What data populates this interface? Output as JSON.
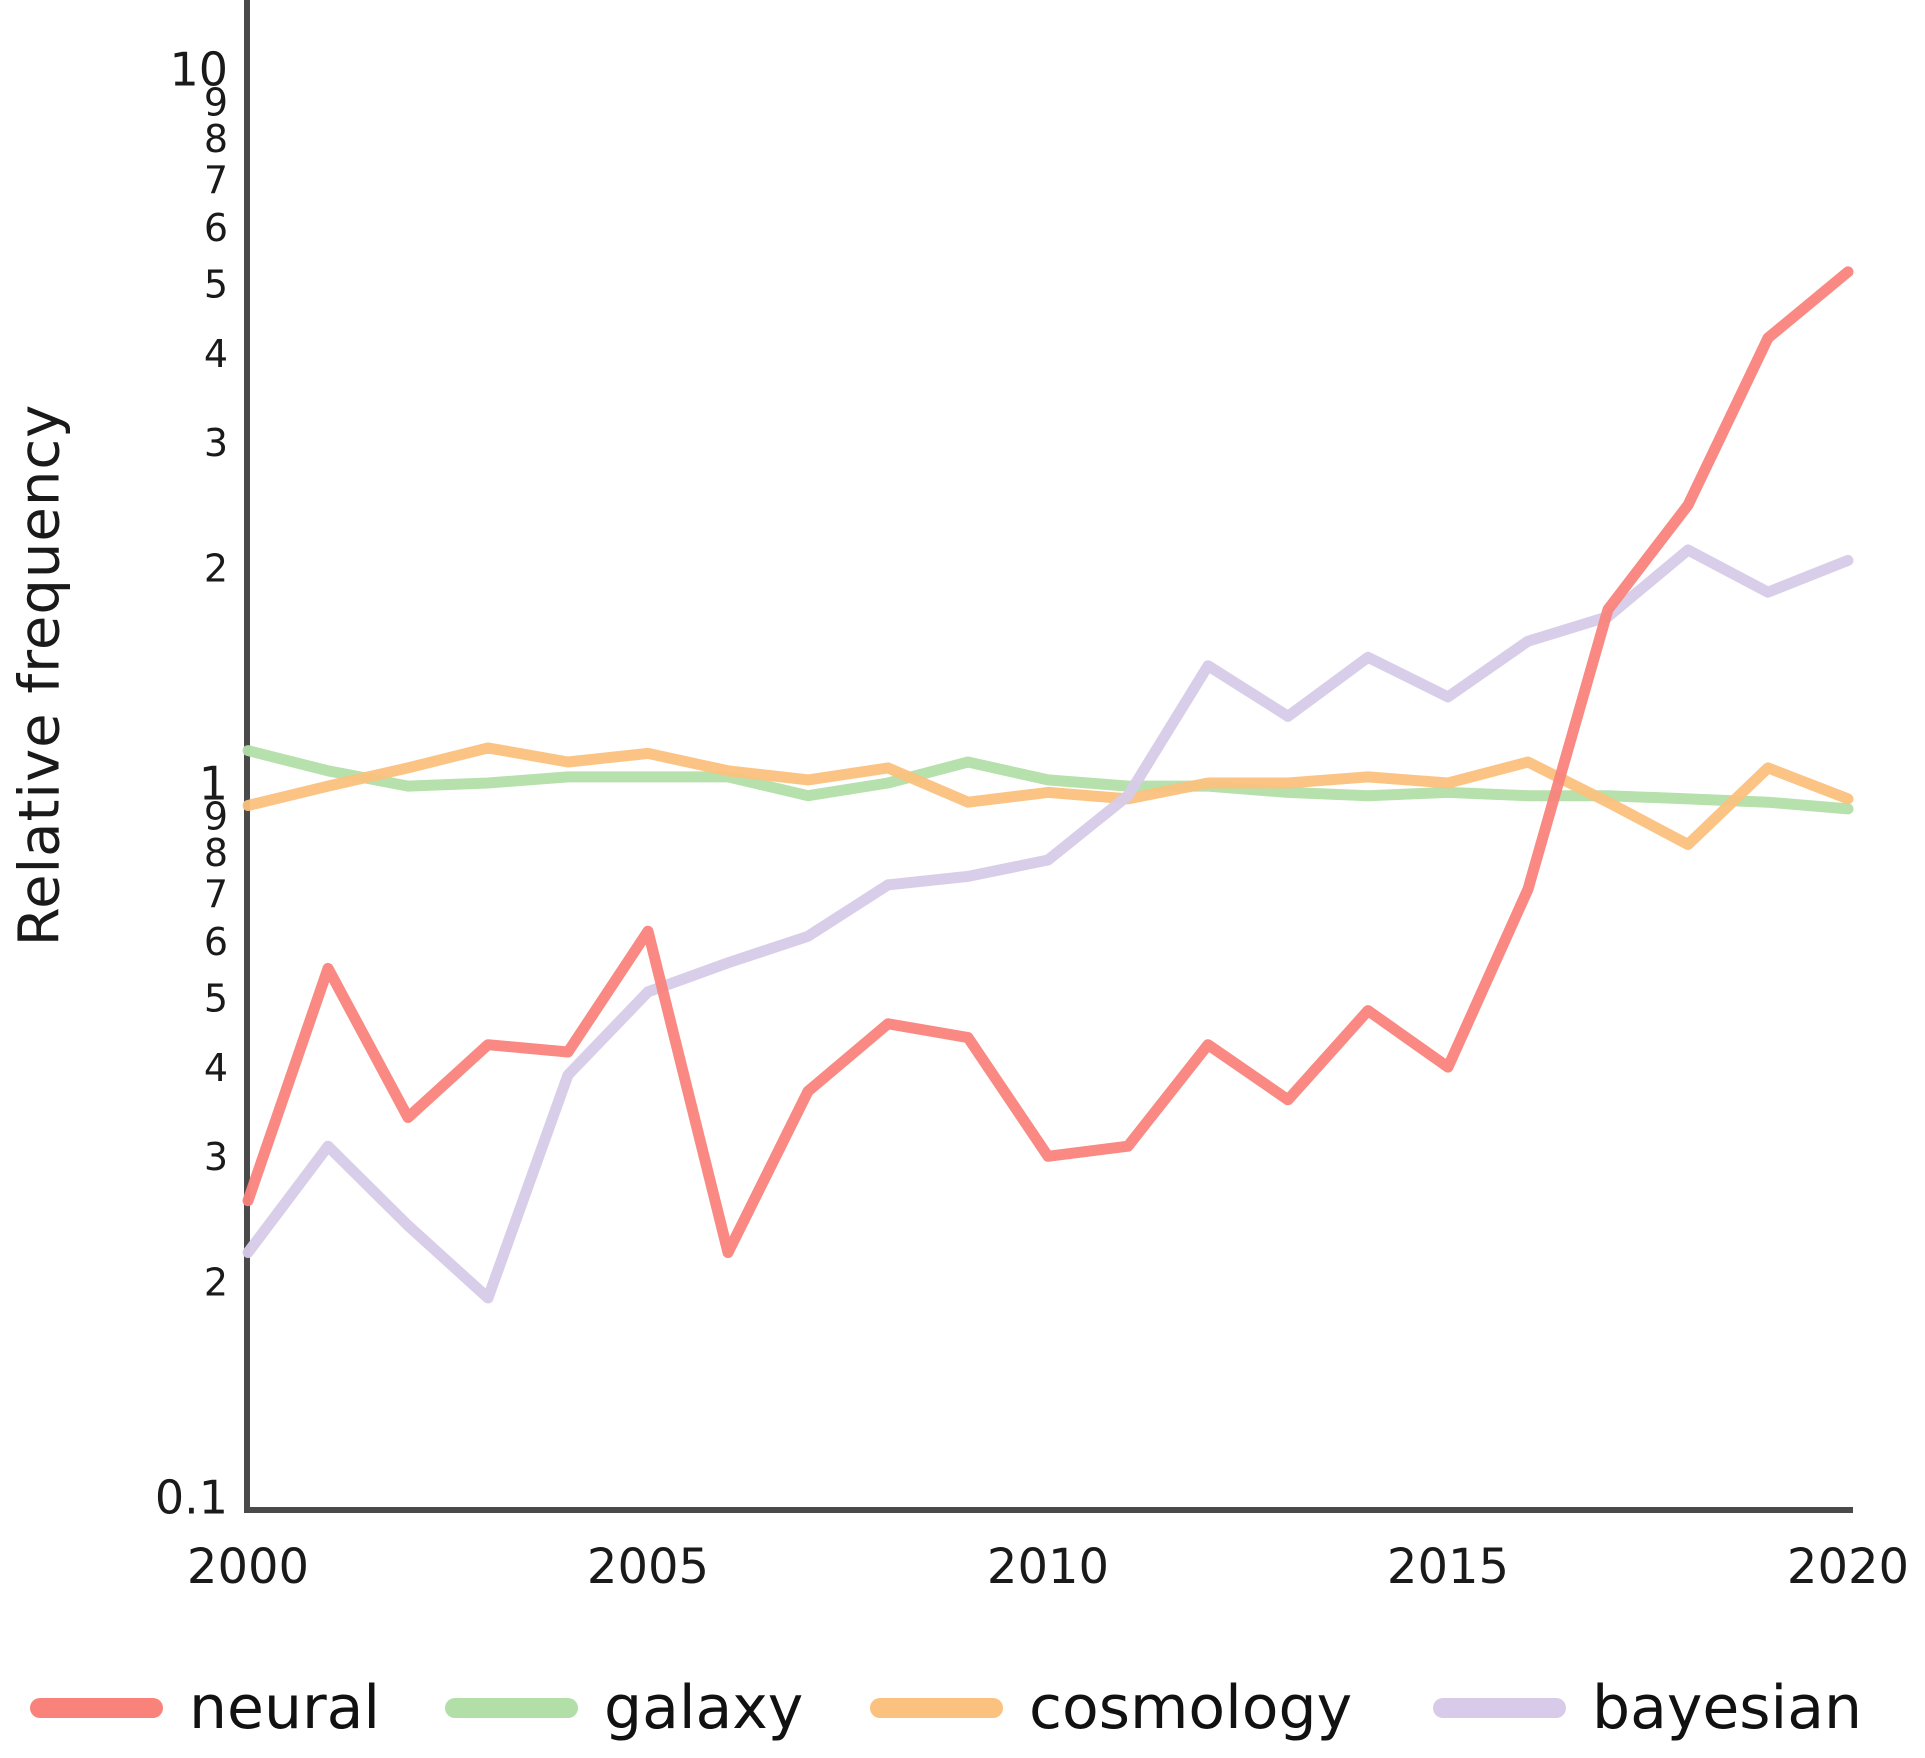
{
  "page": {
    "background": "#ffffff"
  },
  "chart_data": {
    "type": "line",
    "title": "",
    "xlabel": "",
    "ylabel": "Relative frequency",
    "x_scale": "linear",
    "y_scale": "log",
    "xlim": [
      2000,
      2020
    ],
    "ylim": [
      0.1,
      10
    ],
    "grid": false,
    "legend_position": "bottom",
    "axis_color": "#4a4a4a",
    "text_color": "#1a1a1a",
    "x": [
      2000,
      2001,
      2002,
      2003,
      2004,
      2005,
      2006,
      2007,
      2008,
      2009,
      2010,
      2011,
      2012,
      2013,
      2014,
      2015,
      2016,
      2017,
      2018,
      2019,
      2020
    ],
    "x_ticks": [
      {
        "value": 2000,
        "label": "2000"
      },
      {
        "value": 2005,
        "label": "2005"
      },
      {
        "value": 2010,
        "label": "2010"
      },
      {
        "value": 2015,
        "label": "2015"
      },
      {
        "value": 2020,
        "label": "2020"
      }
    ],
    "y_ticks": [
      {
        "value": 10,
        "label": "10",
        "major": true
      },
      {
        "value": 9,
        "label": "9",
        "major": false
      },
      {
        "value": 8,
        "label": "8",
        "major": false
      },
      {
        "value": 7,
        "label": "7",
        "major": false
      },
      {
        "value": 6,
        "label": "6",
        "major": false
      },
      {
        "value": 5,
        "label": "5",
        "major": false
      },
      {
        "value": 4,
        "label": "4",
        "major": false
      },
      {
        "value": 3,
        "label": "3",
        "major": false
      },
      {
        "value": 2,
        "label": "2",
        "major": false
      },
      {
        "value": 1,
        "label": "1",
        "major": true
      },
      {
        "value": 0.9,
        "label": "9",
        "major": false
      },
      {
        "value": 0.8,
        "label": "8",
        "major": false
      },
      {
        "value": 0.7,
        "label": "7",
        "major": false
      },
      {
        "value": 0.6,
        "label": "6",
        "major": false
      },
      {
        "value": 0.5,
        "label": "5",
        "major": false
      },
      {
        "value": 0.4,
        "label": "4",
        "major": false
      },
      {
        "value": 0.3,
        "label": "3",
        "major": false
      },
      {
        "value": 0.2,
        "label": "2",
        "major": false
      },
      {
        "value": 0.1,
        "label": "0.1",
        "major": true
      }
    ],
    "series": [
      {
        "name": "neural",
        "color": "#f9837b",
        "values": [
          0.26,
          0.55,
          0.34,
          0.43,
          0.42,
          0.62,
          0.22,
          0.37,
          0.46,
          0.44,
          0.3,
          0.31,
          0.43,
          0.36,
          0.48,
          0.4,
          0.71,
          1.75,
          2.45,
          4.2,
          5.2
        ]
      },
      {
        "name": "galaxy",
        "color": "#b2dea8",
        "values": [
          1.11,
          1.04,
          0.99,
          1.0,
          1.02,
          1.02,
          1.02,
          0.96,
          1.0,
          1.07,
          1.01,
          0.99,
          0.99,
          0.97,
          0.96,
          0.97,
          0.96,
          0.96,
          0.95,
          0.94,
          0.92
        ]
      },
      {
        "name": "cosmology",
        "color": "#fbc17e",
        "values": [
          0.93,
          0.99,
          1.05,
          1.12,
          1.07,
          1.1,
          1.04,
          1.01,
          1.05,
          0.94,
          0.97,
          0.95,
          1.0,
          1.0,
          1.02,
          1.0,
          1.07,
          0.94,
          0.82,
          1.05,
          0.95
        ]
      },
      {
        "name": "bayesian",
        "color": "#d7cbe9",
        "values": [
          0.22,
          0.31,
          0.24,
          0.19,
          0.39,
          0.51,
          0.56,
          0.61,
          0.72,
          0.74,
          0.78,
          0.96,
          1.46,
          1.24,
          1.5,
          1.32,
          1.58,
          1.71,
          2.12,
          1.85,
          2.05
        ]
      }
    ],
    "draw_order": [
      "galaxy",
      "cosmology",
      "bayesian",
      "neural"
    ]
  }
}
